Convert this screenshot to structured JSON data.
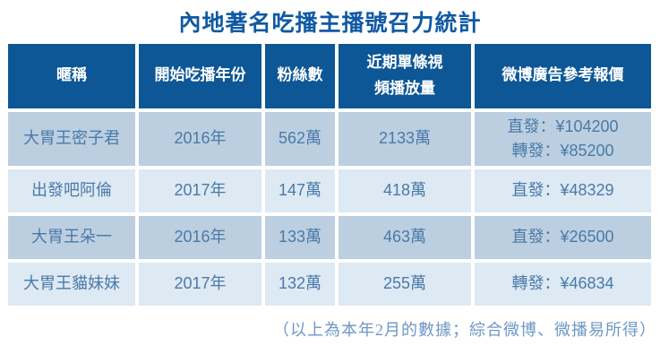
{
  "title": "內地著名吃播主播號召力統計",
  "table": {
    "headers": [
      {
        "label": "暱稱"
      },
      {
        "label": "開始吃播年份"
      },
      {
        "label": "粉絲數"
      },
      {
        "label": "近期單條視",
        "label2": "頻播放量"
      },
      {
        "label": "微博廣告參考報價"
      }
    ],
    "rows": [
      {
        "cells": [
          "大胃王密子君",
          "2016年",
          "562萬",
          "2133萬",
          [
            "直發：¥104200",
            "轉發：¥85200"
          ]
        ]
      },
      {
        "cells": [
          "出發吧阿倫",
          "2017年",
          "147萬",
          "418萬",
          [
            "直發：¥48329"
          ]
        ]
      },
      {
        "cells": [
          "大胃王朵一",
          "2016年",
          "133萬",
          "463萬",
          [
            "直發：¥26500"
          ]
        ]
      },
      {
        "cells": [
          "大胃王貓妹妹",
          "2017年",
          "132萬",
          "255萬",
          [
            "轉發：¥46834"
          ]
        ]
      }
    ]
  },
  "footnote": "（以上為本年2月的數據；綜合微博、微播易所得）",
  "colors": {
    "header_bg": "#0d5796",
    "header_text": "#ffffff",
    "row_odd_bg": "#bccfe0",
    "row_even_bg": "#dde9f3",
    "title_text": "#1059a4",
    "cell_text": "#4a7aa8",
    "footnote_text": "#6f97c5"
  },
  "chart_data": {
    "type": "table",
    "title": "內地著名吃播主播號召力統計",
    "columns": [
      "暱稱",
      "開始吃播年份",
      "粉絲數",
      "近期單條視頻播放量",
      "微博廣告參考報價"
    ],
    "rows": [
      [
        "大胃王密子君",
        "2016年",
        "562萬",
        "2133萬",
        "直發：¥104200；轉發：¥85200"
      ],
      [
        "出發吧阿倫",
        "2017年",
        "147萬",
        "418萬",
        "直發：¥48329"
      ],
      [
        "大胃王朵一",
        "2016年",
        "133萬",
        "463萬",
        "直發：¥26500"
      ],
      [
        "大胃王貓妹妹",
        "2017年",
        "132萬",
        "255萬",
        "轉發：¥46834"
      ]
    ],
    "footnote": "（以上為本年2月的數據；綜合微博、微播易所得）"
  }
}
